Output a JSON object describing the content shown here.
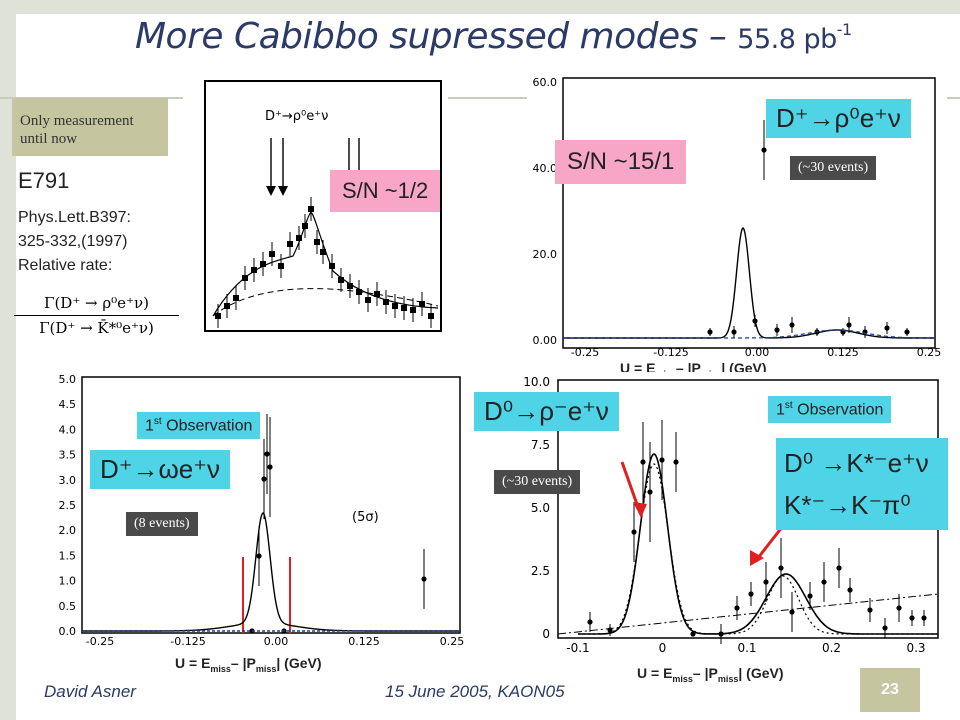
{
  "title": {
    "main": "More Cabibbo supressed modes",
    "dash": " – ",
    "lumi": "55.8 pb",
    "lumi_exp": "-1"
  },
  "note": {
    "line1": "Only measurement",
    "line2": "until now"
  },
  "e791": {
    "name": "E791",
    "ref1": "Phys.Lett.B397:",
    "ref2": "325-332,(1997)",
    "ref3": "Relative rate:"
  },
  "ratio": {
    "numer": "Γ(D⁺ → ρ⁰e⁺ν)",
    "denom": "Γ(D⁺ → K̄*⁰e⁺ν)"
  },
  "panel_e791": {
    "label": "D⁺→ρ⁰e⁺ν",
    "sn": "S/N ~1/2"
  },
  "panel_rho0": {
    "decay": "D⁺→ρ⁰e⁺ν",
    "sn": "S/N ~15/1",
    "events": "(~30 events)",
    "yticks": [
      "0.00",
      "20.0",
      "40.0",
      "60.0"
    ],
    "xticks": [
      "-0.25",
      "-0.125",
      "0.00",
      "0.125",
      "0.25"
    ]
  },
  "panel_omega": {
    "decay": "D⁺→ωe⁺ν",
    "obs": "1",
    "obs_sup": "st",
    "obs_text": " Observation",
    "events": "(8 events)",
    "sig": "(5σ)",
    "yticks": [
      "0.0",
      "0.5",
      "1.0",
      "1.5",
      "2.0",
      "2.5",
      "3.0",
      "3.5",
      "4.0",
      "4.5",
      "5.0"
    ],
    "xticks": [
      "-0.25",
      "-0.125",
      "0.00",
      "0.125",
      "0.25"
    ]
  },
  "panel_rhominus": {
    "decay": "D⁰→ρ⁻e⁺ν",
    "obs": "1",
    "obs_sup": "st",
    "obs_text": " Observation",
    "events": "(~30 events)",
    "decay2": "D⁰ →K*⁻e⁺ν",
    "decay3": "K*⁻→K⁻π⁰",
    "yticks": [
      "0",
      "2.5",
      "5.0",
      "7.5",
      "10.0"
    ],
    "xticks": [
      "-0.1",
      "0",
      "0.1",
      "0.2",
      "0.3"
    ]
  },
  "axis_label": {
    "u": "U = E",
    "miss": "miss",
    "mid": "– |P",
    "end": "| (GeV)"
  },
  "footer": {
    "author": "David Asner",
    "date": "15 June 2005, KAON05",
    "page": "23"
  },
  "colors": {
    "title": "#2b3a66",
    "pink": "#f7a6c7",
    "cyan": "#4fd3e6",
    "dark": "#4a4a4a",
    "red": "#e02020",
    "blue": "#1a3a9a"
  }
}
